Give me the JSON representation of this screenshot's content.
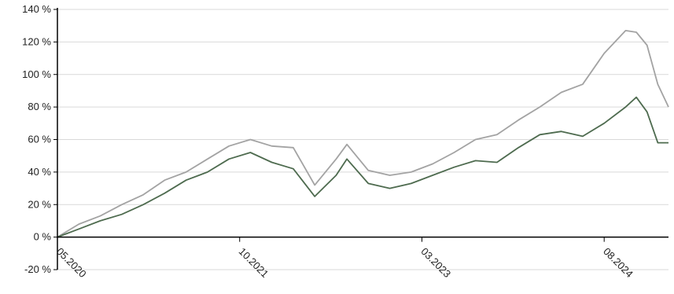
{
  "chart_data": {
    "type": "line",
    "title": "",
    "xlabel": "",
    "ylabel": "",
    "x_range": [
      "2020-05",
      "2025-02"
    ],
    "ylim": [
      -20,
      140
    ],
    "y_ticks": [
      -20,
      0,
      20,
      40,
      60,
      80,
      100,
      120,
      140
    ],
    "y_tick_labels": [
      "-20 %",
      "0 %",
      "20 %",
      "40 %",
      "60 %",
      "80 %",
      "100 %",
      "120 %",
      "140 %"
    ],
    "x_ticks": [
      "2020-05",
      "2021-10",
      "2023-03",
      "2024-08"
    ],
    "x_tick_labels": [
      "05.2020",
      "10.2021",
      "03.2023",
      "08.2024"
    ],
    "grid": true,
    "legend": "none",
    "colors": {
      "series_gray": "#a3a3a3",
      "series_green": "#4e6b4f"
    },
    "series": [
      {
        "color": "#a3a3a3",
        "x": [
          "2020-05",
          "2020-07",
          "2020-09",
          "2020-11",
          "2021-01",
          "2021-03",
          "2021-05",
          "2021-07",
          "2021-09",
          "2021-11",
          "2022-01",
          "2022-03",
          "2022-05",
          "2022-07",
          "2022-08",
          "2022-10",
          "2022-12",
          "2023-02",
          "2023-04",
          "2023-06",
          "2023-08",
          "2023-10",
          "2023-12",
          "2024-02",
          "2024-04",
          "2024-06",
          "2024-08",
          "2024-10",
          "2024-11",
          "2024-12",
          "2025-01",
          "2025-02"
        ],
        "values": [
          0,
          8,
          13,
          20,
          26,
          35,
          40,
          48,
          56,
          60,
          56,
          55,
          32,
          48,
          57,
          41,
          38,
          40,
          45,
          52,
          60,
          63,
          72,
          80,
          89,
          94,
          113,
          127,
          126,
          118,
          94,
          80
        ]
      },
      {
        "color": "#4e6b4f",
        "x": [
          "2020-05",
          "2020-07",
          "2020-09",
          "2020-11",
          "2021-01",
          "2021-03",
          "2021-05",
          "2021-07",
          "2021-09",
          "2021-11",
          "2022-01",
          "2022-03",
          "2022-05",
          "2022-07",
          "2022-08",
          "2022-10",
          "2022-12",
          "2023-02",
          "2023-04",
          "2023-06",
          "2023-08",
          "2023-10",
          "2023-12",
          "2024-02",
          "2024-04",
          "2024-06",
          "2024-08",
          "2024-10",
          "2024-11",
          "2024-12",
          "2025-01",
          "2025-02"
        ],
        "values": [
          0,
          5,
          10,
          14,
          20,
          27,
          35,
          40,
          48,
          52,
          46,
          42,
          25,
          38,
          48,
          33,
          30,
          33,
          38,
          43,
          47,
          46,
          55,
          63,
          65,
          62,
          70,
          80,
          86,
          77,
          58,
          58
        ]
      }
    ]
  }
}
